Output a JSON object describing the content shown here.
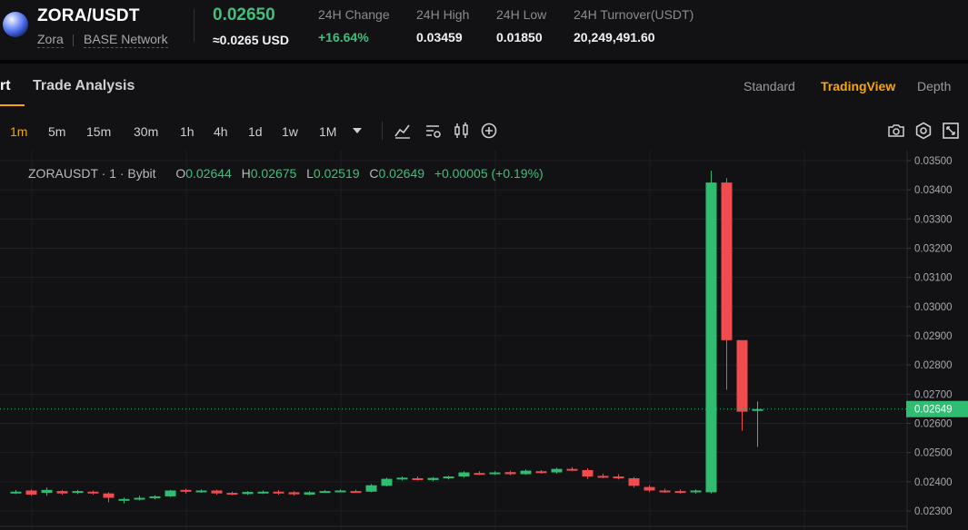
{
  "header": {
    "pair_title": "ZORA/USDT",
    "coin_name": "Zora",
    "network": "BASE Network",
    "last_price": "0.02650",
    "usd_price": "≈0.0265 USD",
    "stats": [
      {
        "label": "24H Change",
        "value": "+16.64%"
      },
      {
        "label": "24H High",
        "value": "0.03459"
      },
      {
        "label": "24H Low",
        "value": "0.01850"
      },
      {
        "label": "24H Turnover(USDT)",
        "value": "20,249,491.60"
      }
    ],
    "colors": {
      "up": "#3ec07a",
      "accent": "#f7a600"
    }
  },
  "tabs": {
    "chart_partial": "rt",
    "trade_analysis": "Trade Analysis",
    "views": [
      "Standard",
      "TradingView",
      "Depth"
    ],
    "active_view": "TradingView"
  },
  "toolbar": {
    "timeframes": [
      "1m",
      "5m",
      "15m",
      "30m",
      "1h",
      "4h",
      "1d",
      "1w",
      "1M"
    ],
    "active_timeframe": "1m",
    "icons": [
      "chevron-down-icon",
      "indicator-icon",
      "chart-settings-icon",
      "candle-type-icon",
      "add-icon",
      "camera-icon",
      "settings-icon",
      "fullscreen-icon"
    ]
  },
  "legend": {
    "symbol": "ZORAUSDT · 1 · Bybit",
    "o_key": "O",
    "o_val": "0.02644",
    "h_key": "H",
    "h_val": "0.02675",
    "l_key": "L",
    "l_val": "0.02519",
    "c_key": "C",
    "c_val": "0.02649",
    "change": "+0.00005 (+0.19%)"
  },
  "chart_data": {
    "type": "candlestick",
    "y_ticks": [
      "0.03500",
      "0.03400",
      "0.03300",
      "0.03200",
      "0.03100",
      "0.03000",
      "0.02900",
      "0.02800",
      "0.02700",
      "0.02600",
      "0.02500",
      "0.02400",
      "0.02300"
    ],
    "ylim": [
      0.0227,
      0.0355
    ],
    "current_price_label": "0.02649",
    "current_price": 0.02649,
    "up_color": "#2ebd71",
    "down_color": "#f04b4f",
    "candles": [
      {
        "o": 0.02364,
        "h": 0.02372,
        "l": 0.02358,
        "c": 0.02366
      },
      {
        "o": 0.0237,
        "h": 0.02374,
        "l": 0.02352,
        "c": 0.02356
      },
      {
        "o": 0.02362,
        "h": 0.0238,
        "l": 0.02352,
        "c": 0.02372
      },
      {
        "o": 0.02368,
        "h": 0.02372,
        "l": 0.02355,
        "c": 0.0236
      },
      {
        "o": 0.02362,
        "h": 0.02372,
        "l": 0.02358,
        "c": 0.02368
      },
      {
        "o": 0.02366,
        "h": 0.0237,
        "l": 0.02356,
        "c": 0.0236
      },
      {
        "o": 0.0236,
        "h": 0.02364,
        "l": 0.0233,
        "c": 0.02345
      },
      {
        "o": 0.02336,
        "h": 0.02346,
        "l": 0.02326,
        "c": 0.02341
      },
      {
        "o": 0.0234,
        "h": 0.02352,
        "l": 0.02336,
        "c": 0.02345
      },
      {
        "o": 0.02348,
        "h": 0.02354,
        "l": 0.0234,
        "c": 0.0235
      },
      {
        "o": 0.0235,
        "h": 0.02372,
        "l": 0.02348,
        "c": 0.0237
      },
      {
        "o": 0.02372,
        "h": 0.02376,
        "l": 0.0236,
        "c": 0.02366
      },
      {
        "o": 0.02368,
        "h": 0.02374,
        "l": 0.02362,
        "c": 0.0237
      },
      {
        "o": 0.0237,
        "h": 0.02373,
        "l": 0.02356,
        "c": 0.0236
      },
      {
        "o": 0.02362,
        "h": 0.02366,
        "l": 0.02354,
        "c": 0.02358
      },
      {
        "o": 0.02358,
        "h": 0.02368,
        "l": 0.02355,
        "c": 0.02365
      },
      {
        "o": 0.02362,
        "h": 0.0237,
        "l": 0.02358,
        "c": 0.02366
      },
      {
        "o": 0.02366,
        "h": 0.02372,
        "l": 0.02356,
        "c": 0.02362
      },
      {
        "o": 0.02364,
        "h": 0.02368,
        "l": 0.02352,
        "c": 0.02357
      },
      {
        "o": 0.02356,
        "h": 0.02368,
        "l": 0.02354,
        "c": 0.02364
      },
      {
        "o": 0.02364,
        "h": 0.02372,
        "l": 0.02362,
        "c": 0.02368
      },
      {
        "o": 0.02368,
        "h": 0.02374,
        "l": 0.02364,
        "c": 0.0237
      },
      {
        "o": 0.02368,
        "h": 0.02373,
        "l": 0.02362,
        "c": 0.02366
      },
      {
        "o": 0.02366,
        "h": 0.02392,
        "l": 0.02364,
        "c": 0.02388
      },
      {
        "o": 0.02386,
        "h": 0.02414,
        "l": 0.02384,
        "c": 0.0241
      },
      {
        "o": 0.0241,
        "h": 0.02418,
        "l": 0.02404,
        "c": 0.02414
      },
      {
        "o": 0.02412,
        "h": 0.02418,
        "l": 0.02404,
        "c": 0.02408
      },
      {
        "o": 0.02406,
        "h": 0.02416,
        "l": 0.02402,
        "c": 0.02413
      },
      {
        "o": 0.02412,
        "h": 0.0242,
        "l": 0.02408,
        "c": 0.02418
      },
      {
        "o": 0.02418,
        "h": 0.02436,
        "l": 0.02414,
        "c": 0.02432
      },
      {
        "o": 0.0243,
        "h": 0.02436,
        "l": 0.02424,
        "c": 0.02428
      },
      {
        "o": 0.02428,
        "h": 0.02436,
        "l": 0.02424,
        "c": 0.02432
      },
      {
        "o": 0.02433,
        "h": 0.02438,
        "l": 0.02422,
        "c": 0.02426
      },
      {
        "o": 0.02426,
        "h": 0.02442,
        "l": 0.02424,
        "c": 0.02438
      },
      {
        "o": 0.02436,
        "h": 0.0244,
        "l": 0.02428,
        "c": 0.02432
      },
      {
        "o": 0.02432,
        "h": 0.02448,
        "l": 0.02428,
        "c": 0.02444
      },
      {
        "o": 0.02444,
        "h": 0.0245,
        "l": 0.02436,
        "c": 0.0244
      },
      {
        "o": 0.0244,
        "h": 0.02446,
        "l": 0.0241,
        "c": 0.02418
      },
      {
        "o": 0.0242,
        "h": 0.02428,
        "l": 0.02412,
        "c": 0.02416
      },
      {
        "o": 0.02418,
        "h": 0.02426,
        "l": 0.02408,
        "c": 0.02412
      },
      {
        "o": 0.02412,
        "h": 0.02416,
        "l": 0.0238,
        "c": 0.02386
      },
      {
        "o": 0.02382,
        "h": 0.02388,
        "l": 0.02364,
        "c": 0.0237
      },
      {
        "o": 0.0237,
        "h": 0.02376,
        "l": 0.02362,
        "c": 0.02366
      },
      {
        "o": 0.02368,
        "h": 0.02374,
        "l": 0.0236,
        "c": 0.02364
      },
      {
        "o": 0.02364,
        "h": 0.02374,
        "l": 0.0236,
        "c": 0.0237
      },
      {
        "o": 0.02364,
        "h": 0.03465,
        "l": 0.0236,
        "c": 0.03425
      },
      {
        "o": 0.03425,
        "h": 0.0344,
        "l": 0.02715,
        "c": 0.02885
      },
      {
        "o": 0.02885,
        "h": 0.02885,
        "l": 0.02575,
        "c": 0.0264
      },
      {
        "o": 0.02644,
        "h": 0.02675,
        "l": 0.02519,
        "c": 0.02649
      }
    ]
  }
}
